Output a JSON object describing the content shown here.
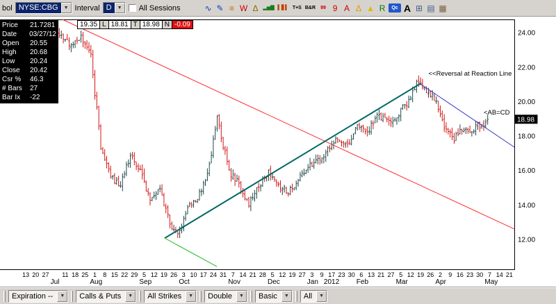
{
  "top_toolbar": {
    "symbol_label": "bol",
    "symbol_value": "NYSE:CBG",
    "interval_label": "Interval",
    "interval_value": "D",
    "all_sessions_label": "All Sessions",
    "dropdown_arrow": "▼",
    "icons": [
      {
        "name": "zigzag-tool-icon",
        "glyph": "∿",
        "color": "#1040c0"
      },
      {
        "name": "zigzag-draw-icon",
        "glyph": "✎",
        "color": "#1040c0"
      },
      {
        "name": "study-lines-icon",
        "glyph": "≡",
        "color": "#c07000"
      },
      {
        "name": "w-pattern-icon",
        "glyph": "W",
        "color": "#cc0000"
      },
      {
        "name": "triangle-pattern-icon",
        "glyph": "Δ",
        "color": "#8a6d00"
      },
      {
        "name": "volume-bars-icon",
        "glyph": "▂▅▇",
        "color": "#1f7a1f"
      },
      {
        "name": "price-bars-icon",
        "glyph": "▍▋▍",
        "color": "#c04000"
      },
      {
        "name": "time-sales-button",
        "glyph": "T+S",
        "color": "#000000"
      },
      {
        "name": "bid-ask-button",
        "glyph": "B&R",
        "color": "#000000"
      },
      {
        "name": "quote-board-icon",
        "glyph": "99",
        "color": "#cc0000"
      },
      {
        "name": "quote-single-icon",
        "glyph": "9",
        "color": "#cc0000"
      },
      {
        "name": "zoom-letter-icon",
        "glyph": "A",
        "color": "#cc0000"
      },
      {
        "name": "alert-triangle-icon",
        "glyph": "Δ",
        "color": "#d8a000"
      },
      {
        "name": "alert-small-icon",
        "glyph": "▲",
        "color": "#e0b800"
      },
      {
        "name": "replay-icon",
        "glyph": "R",
        "color": "#007a00"
      },
      {
        "name": "quote-abc-icon",
        "glyph": "Qc",
        "color": "#ffffff",
        "bg": "#2255cc"
      },
      {
        "name": "text-tool-icon",
        "glyph": "A",
        "color": "#000000",
        "big": true
      },
      {
        "name": "grid-icon",
        "glyph": "⊞",
        "color": "#44608a"
      },
      {
        "name": "save-icon",
        "glyph": "▤",
        "color": "#44608a"
      },
      {
        "name": "save-image-icon",
        "glyph": "▦",
        "color": "#7a6048"
      }
    ]
  },
  "price_panel": {
    "rows": [
      {
        "label": "Price",
        "value": "21.7281"
      },
      {
        "label": "Date",
        "value": "03/27/12"
      },
      {
        "label": "Open",
        "value": "20.55"
      },
      {
        "label": "High",
        "value": "20.68"
      },
      {
        "label": "Low",
        "value": "20.24"
      },
      {
        "label": "Close",
        "value": "20.42"
      },
      {
        "label": "Csr %",
        "value": "46.3"
      },
      {
        "label": "# Bars",
        "value": "27"
      },
      {
        "label": "Bar Ix",
        "value": "-22"
      }
    ]
  },
  "quote_strip": {
    "items": [
      {
        "text": "19.35",
        "style": "value"
      },
      {
        "text": "L",
        "style": "tag"
      },
      {
        "text": "18.81",
        "style": "value"
      },
      {
        "text": "T",
        "style": "tag"
      },
      {
        "text": "18.98",
        "style": "value"
      },
      {
        "text": "N",
        "style": "tag"
      },
      {
        "text": "-0.09",
        "style": "negative"
      }
    ]
  },
  "chart_data": {
    "type": "ohlc",
    "symbol": "NYSE:CBG",
    "interval": "Daily",
    "ylim": [
      10.27,
      24.77
    ],
    "y_ticks": {
      "values": [
        24,
        22,
        20,
        18,
        16,
        14,
        12
      ],
      "labels": [
        "24.00",
        "22.00",
        "20.00",
        "18.00",
        "16.00",
        "14.00",
        "12.00"
      ]
    },
    "total_week_slots": 50,
    "bars_per_week": 5,
    "x_ticks": [
      [
        "13",
        0
      ],
      [
        "20",
        1
      ],
      [
        "27",
        2
      ],
      [
        "11",
        4
      ],
      [
        "18",
        5
      ],
      [
        "25",
        6
      ],
      [
        "1",
        7
      ],
      [
        "8",
        8
      ],
      [
        "15",
        9
      ],
      [
        "22",
        10
      ],
      [
        "29",
        11
      ],
      [
        "5",
        12
      ],
      [
        "12",
        13
      ],
      [
        "19",
        14
      ],
      [
        "26",
        15
      ],
      [
        "3",
        16
      ],
      [
        "10",
        17
      ],
      [
        "17",
        18
      ],
      [
        "24",
        19
      ],
      [
        "31",
        20
      ],
      [
        "7",
        21
      ],
      [
        "14",
        22
      ],
      [
        "21",
        23
      ],
      [
        "28",
        24
      ],
      [
        "5",
        25
      ],
      [
        "12",
        26
      ],
      [
        "19",
        27
      ],
      [
        "27",
        28
      ],
      [
        "3",
        29
      ],
      [
        "9",
        30
      ],
      [
        "17",
        31
      ],
      [
        "23",
        32
      ],
      [
        "30",
        33
      ],
      [
        "6",
        34
      ],
      [
        "13",
        35
      ],
      [
        "21",
        36
      ],
      [
        "27",
        37
      ],
      [
        "5",
        38
      ],
      [
        "12",
        39
      ],
      [
        "19",
        40
      ],
      [
        "26",
        41
      ],
      [
        "2",
        42
      ],
      [
        "9",
        43
      ],
      [
        "16",
        44
      ],
      [
        "23",
        45
      ],
      [
        "30",
        46
      ],
      [
        "7",
        47
      ],
      [
        "14",
        48
      ],
      [
        "21",
        49
      ]
    ],
    "x_months": [
      [
        "Jul",
        3
      ],
      [
        "Aug",
        7
      ],
      [
        "Sep",
        12
      ],
      [
        "Oct",
        16
      ],
      [
        "Nov",
        21
      ],
      [
        "Dec",
        25
      ],
      [
        "Jan",
        29
      ],
      [
        "2012",
        30.7
      ],
      [
        "Feb",
        34
      ],
      [
        "Mar",
        38
      ],
      [
        "Apr",
        42
      ],
      [
        "May",
        47
      ]
    ],
    "weekly_close_anchors": {
      "slot": [
        2,
        3,
        4,
        5,
        6,
        7,
        8,
        9,
        10,
        11,
        12,
        13,
        14,
        15,
        16,
        17,
        18,
        19,
        19.8,
        20.6,
        21,
        22,
        23,
        24,
        25,
        26,
        27,
        28,
        29,
        30,
        31,
        32,
        33,
        34,
        35,
        36,
        37,
        38,
        39,
        40,
        40.6,
        41.4,
        42,
        43,
        43.8,
        44.6,
        45.4,
        46.2,
        47.4
      ],
      "close": [
        23.3,
        23.7,
        24.0,
        23.1,
        23.8,
        22.6,
        17.4,
        15.6,
        15.1,
        16.9,
        15.9,
        14.2,
        15.0,
        12.9,
        12.4,
        14.0,
        14.6,
        16.2,
        19.1,
        17.0,
        15.9,
        15.2,
        14.0,
        15.1,
        16.0,
        15.2,
        14.8,
        15.4,
        16.2,
        16.5,
        17.2,
        17.8,
        17.6,
        18.5,
        18.2,
        19.2,
        18.8,
        19.2,
        19.9,
        21.0,
        20.8,
        20.45,
        19.9,
        18.3,
        17.9,
        18.5,
        18.2,
        18.6,
        18.98
      ]
    },
    "last_price": 18.98,
    "price_tag_label": "18.98",
    "up_color": "#1e4646",
    "down_color": "#d21414",
    "trendlines": [
      {
        "name": "resistance-downtrend-line",
        "color": "#ff2a2a",
        "width": 1,
        "from": {
          "slot": 4.2,
          "price": 24.77
        },
        "to": {
          "slot": 50,
          "price": 12.61
        }
      },
      {
        "name": "primary-uptrend-line",
        "color": "#006868",
        "width": 2,
        "from": {
          "slot": 14.58,
          "price": 12.08
        },
        "to": {
          "slot": 40.55,
          "price": 21.07
        }
      },
      {
        "name": "reaction-decline-line",
        "color": "#3434c8",
        "width": 1,
        "from": {
          "slot": 40.55,
          "price": 21.0
        },
        "to": {
          "slot": 50,
          "price": 17.36
        }
      },
      {
        "name": "fan-line-green",
        "color": "#22bb22",
        "width": 1,
        "from": {
          "slot": 14.58,
          "price": 12.08
        },
        "to": {
          "slot": 19.86,
          "price": 10.43
        }
      }
    ],
    "annotations": [
      {
        "text": "<<Reversal at Reaction Line",
        "slot": 41.3,
        "price": 21.5
      },
      {
        "text": "<AB=CD",
        "slot": 46.9,
        "price": 19.25
      }
    ]
  },
  "bottom_toolbar": {
    "combos": [
      {
        "name": "expiration-select",
        "label": "Expiration --"
      },
      {
        "name": "calls-puts-select",
        "label": "Calls & Puts"
      },
      {
        "name": "strikes-select",
        "label": "All Strikes"
      },
      {
        "name": "double-select",
        "label": "Double"
      },
      {
        "name": "basic-select",
        "label": "Basic"
      },
      {
        "name": "all-select",
        "label": "All"
      }
    ]
  }
}
